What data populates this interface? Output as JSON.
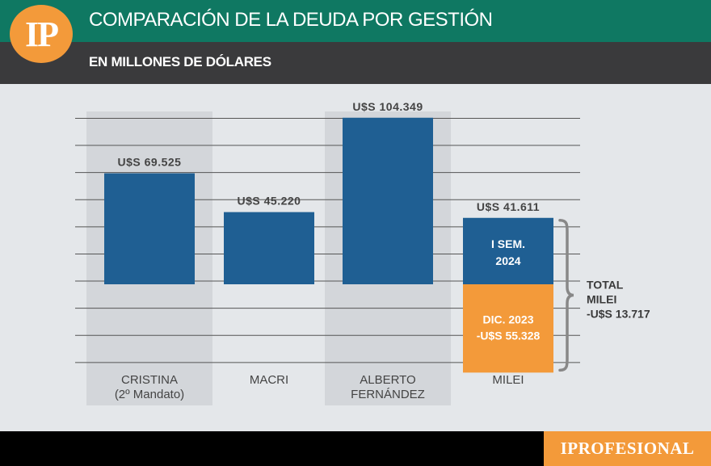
{
  "header": {
    "logo_text": "IP",
    "title": "COMPARACIÓN DE LA DEUDA POR GESTIÓN",
    "subtitle": "EN MILLONES DE DÓLARES"
  },
  "footer": {
    "brand": "IPROFESIONAL"
  },
  "colors": {
    "bar": "#1f5f93",
    "highlight": "#f39a3a",
    "shade": "#d3d6da",
    "header": "#0f7862"
  },
  "chart_data": {
    "type": "bar",
    "title": "COMPARACIÓN DE LA DEUDA POR GESTIÓN",
    "subtitle": "EN MILLONES DE DÓLARES",
    "categories": [
      [
        "CRISTINA",
        "(2º Mandato)"
      ],
      [
        "MACRI"
      ],
      [
        "ALBERTO",
        "FERNÁNDEZ"
      ],
      [
        "MILEI"
      ]
    ],
    "values": [
      69525,
      45220,
      104349,
      41611
    ],
    "value_labels": [
      "U$S 69.525",
      "U$S 45.220",
      "U$S 104.349",
      "U$S 41.611"
    ],
    "milei_breakdown": [
      {
        "label": [
          "I SEM.",
          "2024"
        ],
        "value": 41611
      },
      {
        "label": [
          "DIC. 2023",
          "-U$S 55.328"
        ],
        "value": -55328
      }
    ],
    "total_annotation": [
      "TOTAL",
      "MILEI",
      "-U$S 13.717"
    ],
    "ylim": [
      -66000,
      138000
    ],
    "gridline_step": 17000,
    "grid": true
  }
}
